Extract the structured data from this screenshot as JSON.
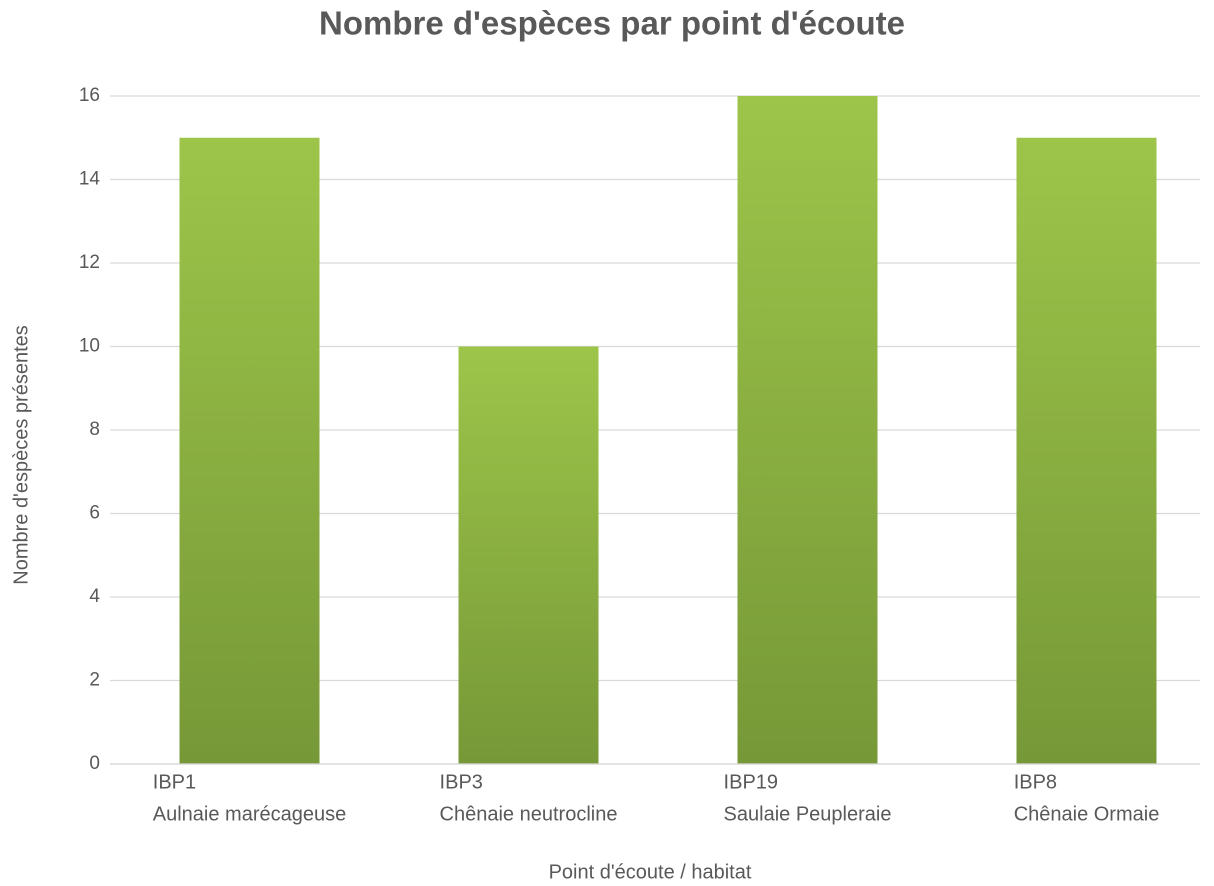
{
  "chart_data": {
    "type": "bar",
    "title": "Nombre d'espèces par point d'écoute",
    "x_label": "Point d'écoute / habitat",
    "y_label": "Nombre  d'espèces présentes",
    "categories": [
      [
        "IBP1",
        "Aulnaie marécageuse"
      ],
      [
        "IBP3",
        "Chênaie neutrocline"
      ],
      [
        "IBP19",
        "Saulaie Peupleraie"
      ],
      [
        "IBP8",
        "Chênaie Ormaie"
      ]
    ],
    "values": [
      15,
      10,
      16,
      15
    ],
    "color": "#8ab444",
    "ylim": [
      0,
      16
    ],
    "yticks": [
      0,
      2,
      4,
      6,
      8,
      10,
      12,
      14,
      16
    ],
    "grid": true
  }
}
